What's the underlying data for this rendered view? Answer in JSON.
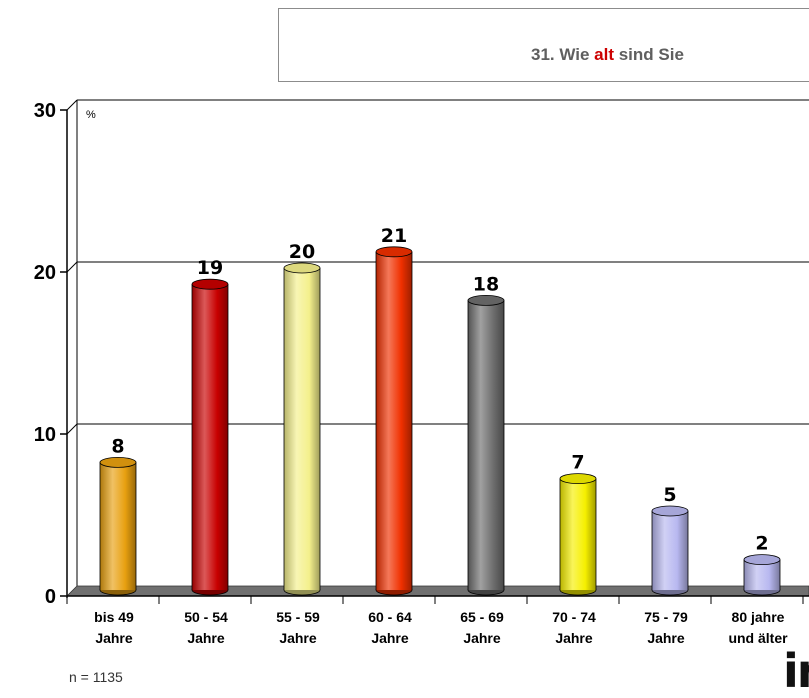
{
  "title": {
    "prefix": "31. Wie ",
    "highlight": "alt",
    "suffix": " sind Sie"
  },
  "sample_size": "n = 1135",
  "logo_text": "in",
  "colors": {
    "floor": "#707070",
    "grid": "#000000",
    "title_highlight": "#cc0000"
  },
  "chart_data": {
    "type": "bar",
    "unit_label": "%",
    "ylim": [
      0,
      30
    ],
    "yticks": [
      0,
      10,
      20,
      30
    ],
    "grid": true,
    "categories": [
      [
        "bis 49",
        "Jahre"
      ],
      [
        "50 - 54",
        "Jahre"
      ],
      [
        "55 - 59",
        "Jahre"
      ],
      [
        "60 - 64",
        "Jahre"
      ],
      [
        "65 - 69",
        "Jahre"
      ],
      [
        "70 - 74",
        "Jahre"
      ],
      [
        "75 - 79",
        "Jahre"
      ],
      [
        "80 jahre",
        "und älter"
      ]
    ],
    "values": [
      8,
      19,
      20,
      21,
      18,
      7,
      5,
      2
    ],
    "bar_colors": [
      "#e8a010",
      "#c80000",
      "#f4f08c",
      "#f03000",
      "#6e6e6e",
      "#f6f000",
      "#b8b8f0",
      "#b8b8f0"
    ]
  }
}
